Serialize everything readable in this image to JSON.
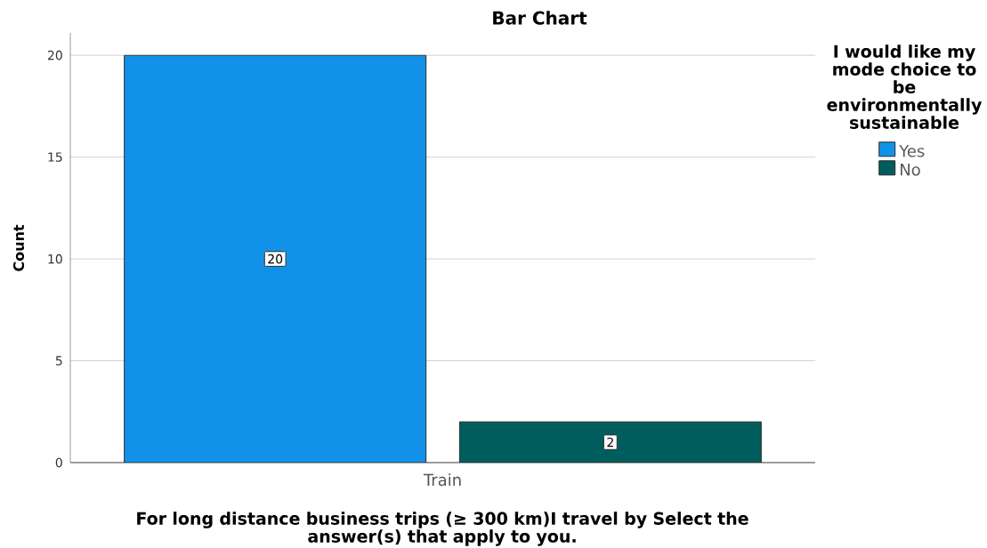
{
  "chart_data": {
    "type": "bar",
    "title": "Bar Chart",
    "xlabel": "For long distance business trips (≥ 300 km)I travel by Select the answer(s) that apply to you.",
    "ylabel": "Count",
    "legend_title": "I would like my mode choice to be environmentally sustainable",
    "categories": [
      "Train"
    ],
    "series": [
      {
        "name": "Yes",
        "color": "#1192e8",
        "values": [
          20
        ]
      },
      {
        "name": "No",
        "color": "#005d5d",
        "values": [
          2
        ]
      }
    ],
    "ylim": [
      0,
      21.1
    ],
    "yticks": [
      0,
      5,
      10,
      15,
      20
    ],
    "grid": "y",
    "legend": "right",
    "data_labels": true
  }
}
